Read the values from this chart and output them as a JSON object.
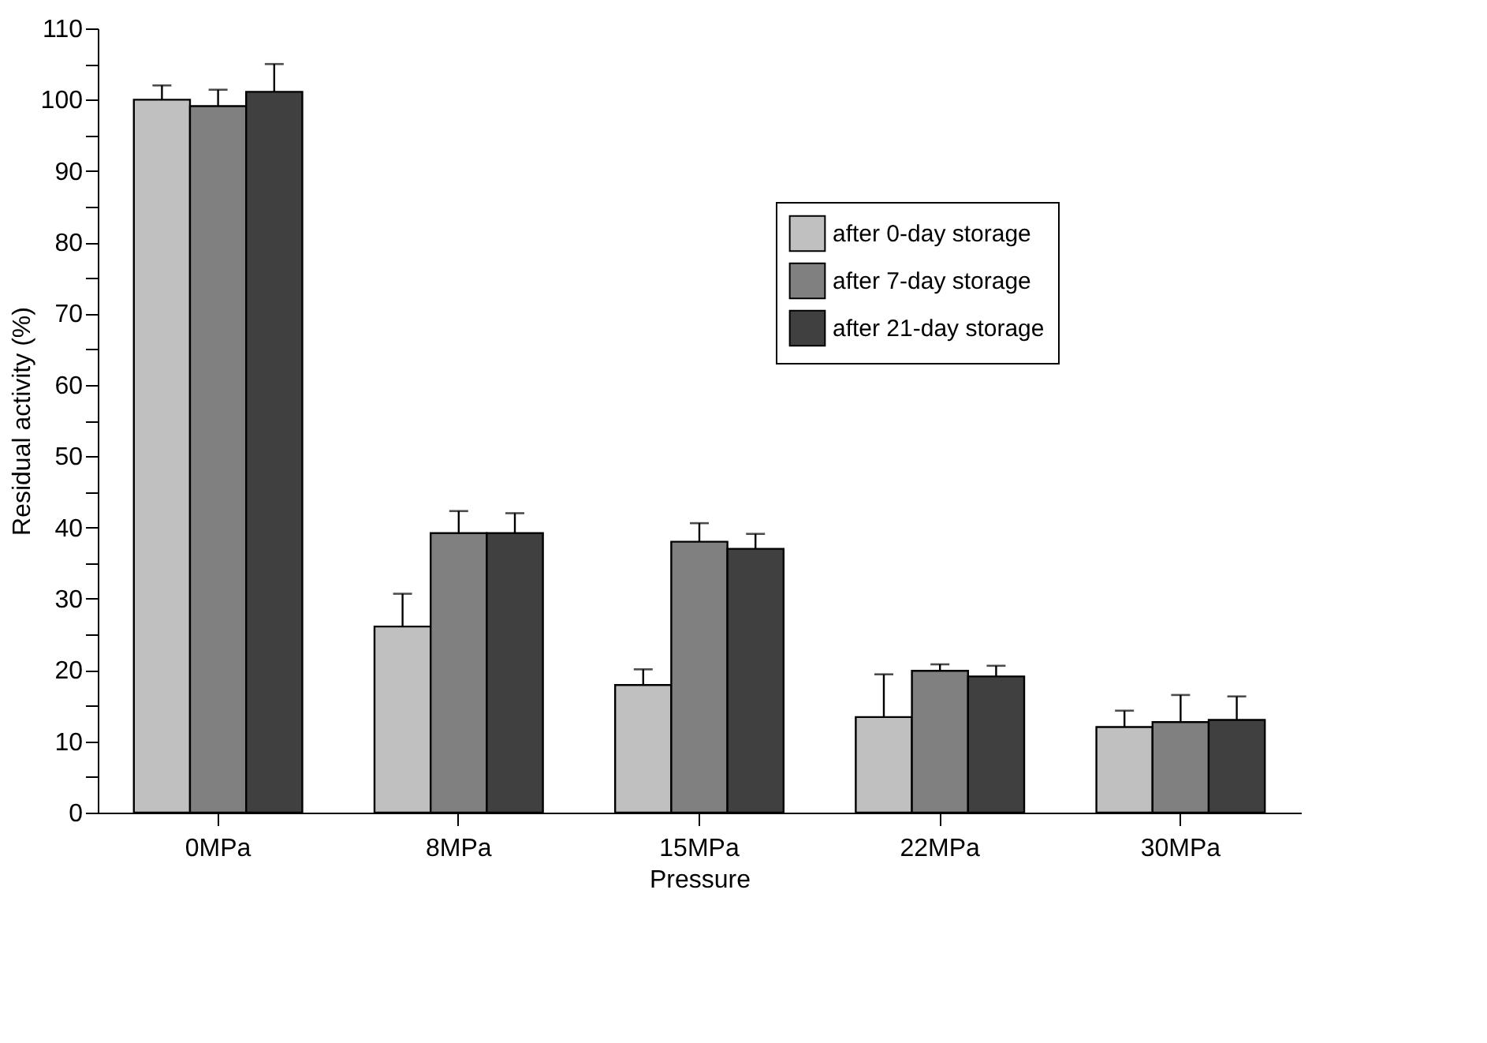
{
  "chart_data": {
    "type": "bar",
    "xlabel": "Pressure",
    "ylabel": "Residual activity (%)",
    "categories": [
      "0MPa",
      "8MPa",
      "15MPa",
      "22MPa",
      "30MPa"
    ],
    "series": [
      {
        "name": "after 0-day storage",
        "color": "#c0c0c0",
        "values": [
          100,
          26.1,
          17.9,
          13.4,
          12.0
        ],
        "errors": [
          [
            100,
            102.0
          ],
          [
            26.1,
            30.7
          ],
          [
            17.9,
            20.1
          ],
          [
            13.4,
            19.4
          ],
          [
            12.0,
            14.3
          ]
        ]
      },
      {
        "name": "after 7-day storage",
        "color": "#808080",
        "values": [
          99.1,
          39.2,
          38.0,
          19.9,
          12.7
        ],
        "errors": [
          [
            99.1,
            101.4
          ],
          [
            39.2,
            42.3
          ],
          [
            38.0,
            40.6
          ],
          [
            19.9,
            20.8
          ],
          [
            12.7,
            16.5
          ]
        ]
      },
      {
        "name": "after 21-day storage",
        "color": "#404040",
        "values": [
          101.1,
          39.2,
          37.0,
          19.1,
          13.0
        ],
        "errors": [
          [
            101.1,
            105.0
          ],
          [
            39.2,
            42.0
          ],
          [
            37.0,
            39.1
          ],
          [
            19.1,
            20.6
          ],
          [
            13.0,
            16.3
          ]
        ]
      }
    ],
    "ylim": [
      0,
      110
    ],
    "yticks": [
      0,
      {
        "value": 5,
        "label": null
      },
      10,
      {
        "value": 15,
        "label": null
      },
      20,
      {
        "value": 25,
        "label": null
      },
      30,
      {
        "value": 35,
        "label": null
      },
      40,
      {
        "value": 45,
        "label": null
      },
      50,
      {
        "value": 55,
        "label": null
      },
      60,
      {
        "value": 65,
        "label": null
      },
      70,
      {
        "value": 75,
        "label": null
      },
      80,
      {
        "value": 85,
        "label": null
      },
      90,
      {
        "value": 95,
        "label": null
      },
      100,
      {
        "value": 105,
        "label": null
      },
      110
    ],
    "grid": false,
    "legend": "top right"
  }
}
